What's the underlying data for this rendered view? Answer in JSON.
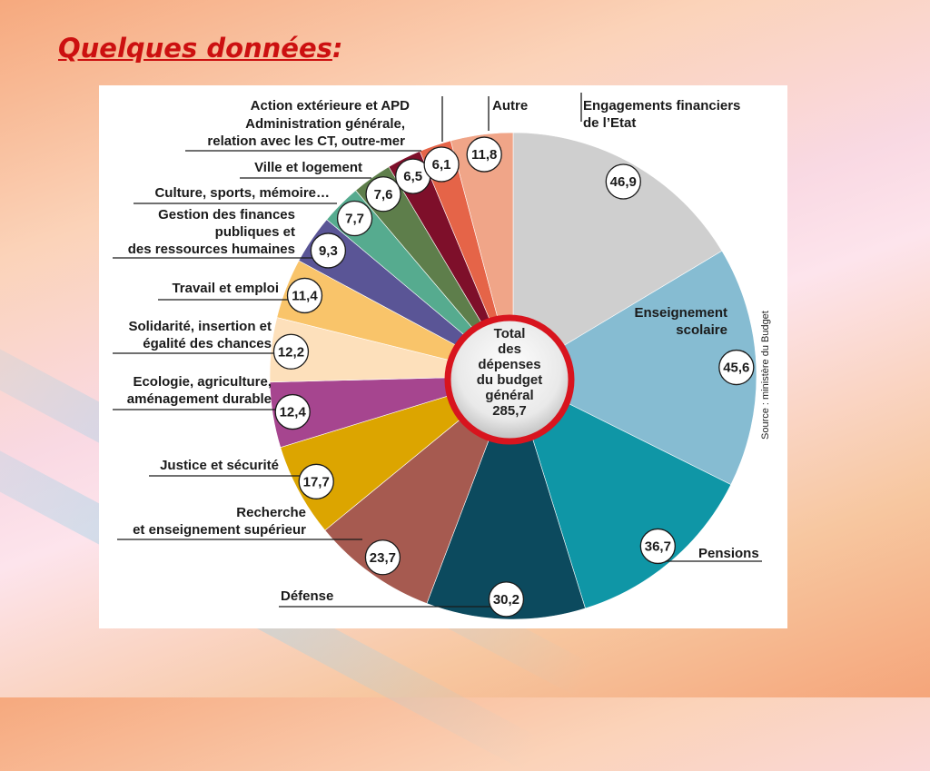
{
  "slide": {
    "title_main": "Quelques données",
    "title_colon": ":"
  },
  "chart_data": {
    "type": "pie",
    "center_label": [
      "Total",
      "des",
      "dépenses",
      "du budget",
      "général",
      "285,7"
    ],
    "source": "Source : ministère du Budget",
    "slices": [
      {
        "label": [
          "Engagements financiers",
          "de l’Etat"
        ],
        "value": 46.9,
        "value_text": "46,9",
        "color": "#cfcfcf"
      },
      {
        "label": [
          "Enseignement",
          "scolaire"
        ],
        "value": 45.6,
        "value_text": "45,6",
        "color": "#86bcd2"
      },
      {
        "label": [
          "Pensions"
        ],
        "value": 36.7,
        "value_text": "36,7",
        "color": "#0f96a6"
      },
      {
        "label": [
          "Défense"
        ],
        "value": 30.2,
        "value_text": "30,2",
        "color": "#0c4a5e"
      },
      {
        "label": [
          "Recherche",
          "et enseignement supérieur"
        ],
        "value": 23.7,
        "value_text": "23,7",
        "color": "#a65a50"
      },
      {
        "label": [
          "Justice et sécurité"
        ],
        "value": 17.7,
        "value_text": "17,7",
        "color": "#dca500"
      },
      {
        "label": [
          "Ecologie, agriculture,",
          "aménagement durable"
        ],
        "value": 12.4,
        "value_text": "12,4",
        "color": "#a6458f"
      },
      {
        "label": [
          "Solidarité, insertion et",
          "égalité des chances"
        ],
        "value": 12.2,
        "value_text": "12,2",
        "color": "#fde0bb"
      },
      {
        "label": [
          "Travail et emploi"
        ],
        "value": 11.4,
        "value_text": "11,4",
        "color": "#f9c46a"
      },
      {
        "label": [
          "Gestion des finances",
          "publiques et",
          "des ressources humaines"
        ],
        "value": 9.3,
        "value_text": "9,3",
        "color": "#5a5596"
      },
      {
        "label": [
          "Culture, sports, mémoire…"
        ],
        "value": 7.7,
        "value_text": "7,7",
        "color": "#56ab8f"
      },
      {
        "label": [
          "Ville et logement"
        ],
        "value": 7.6,
        "value_text": "7,6",
        "color": "#5e7e4b"
      },
      {
        "label": [
          "Administration générale,",
          "relation avec les CT, outre-mer"
        ],
        "value": 6.5,
        "value_text": "6,5",
        "color": "#7e0f2a"
      },
      {
        "label": [
          "Action extérieure et APD"
        ],
        "value": 6.1,
        "value_text": "6,1",
        "color": "#e56448"
      },
      {
        "label": [
          "Autre"
        ],
        "value": 11.8,
        "value_text": "11,8",
        "color": "#f0a588"
      }
    ]
  }
}
